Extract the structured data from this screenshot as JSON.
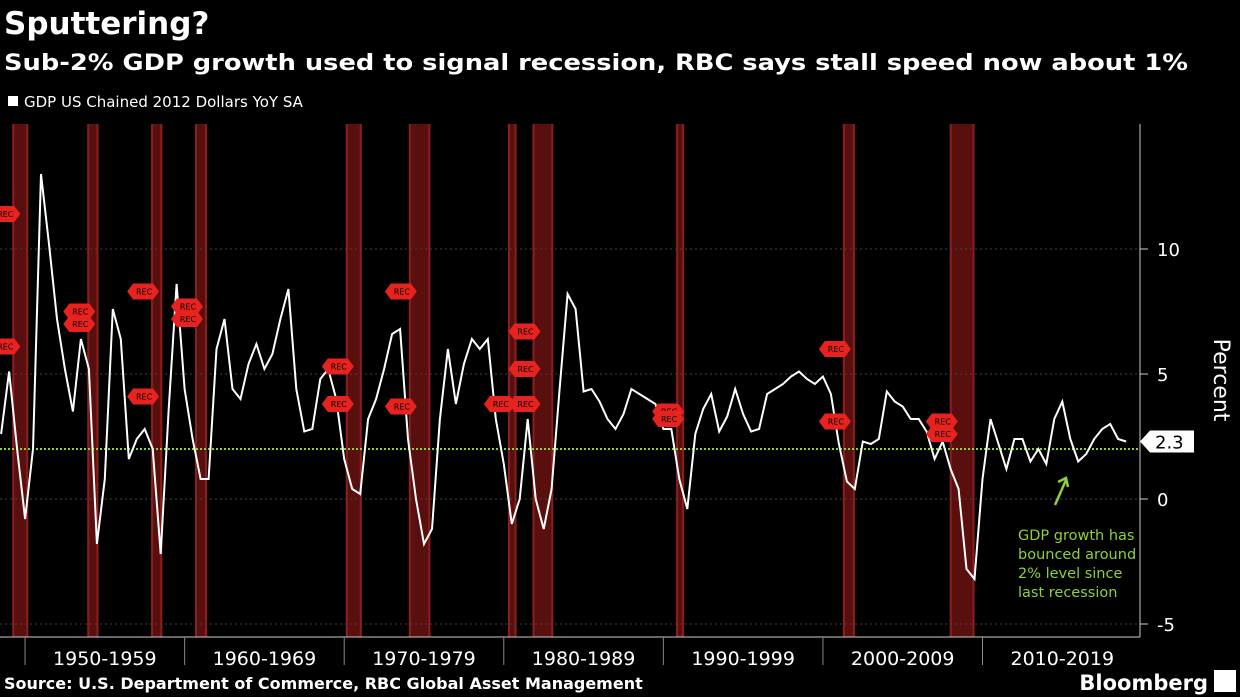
{
  "chart_data": {
    "type": "line",
    "title": "Sputtering?",
    "subtitle": "Sub-2% GDP growth used to signal recession, RBC says stall speed now about 1%",
    "y_label": "Percent",
    "source": "Source: U.S. Department of Commerce, RBC Global Asset Management",
    "brand": "Bloomberg",
    "annotation": [
      "GDP growth has",
      "bounced around",
      "2% level since",
      "last recession"
    ],
    "annotation_color": "#8fd13a",
    "reference_line": {
      "value": 2,
      "color": "#8fd13a"
    },
    "xlim": [
      1948.43,
      2019.87
    ],
    "ylim": [
      -5.52,
      15
    ],
    "yticks": [
      -5,
      0,
      5,
      10
    ],
    "xticks": [
      {
        "value": 1950,
        "label": "1950-1959"
      },
      {
        "value": 1960,
        "label": "1960-1969"
      },
      {
        "value": 1970,
        "label": "1970-1979"
      },
      {
        "value": 1980,
        "label": "1980-1989"
      },
      {
        "value": 1990,
        "label": "1990-1999"
      },
      {
        "value": 2000,
        "label": "2000-2009"
      },
      {
        "value": 2010,
        "label": "2010-2019"
      }
    ],
    "grid": true,
    "recession_color": "#5a0f0f",
    "recessions": [
      {
        "start": 1949.2,
        "end": 1950.2,
        "label": "REC",
        "flags": [
          11.4,
          6.1
        ]
      },
      {
        "start": 1953.9,
        "end": 1954.6,
        "label": "REC",
        "flags": [
          7.5,
          7.0
        ]
      },
      {
        "start": 1957.9,
        "end": 1958.6,
        "label": "REC",
        "flags": [
          8.3,
          4.1
        ]
      },
      {
        "start": 1960.65,
        "end": 1961.4,
        "label": "REC",
        "flags": [
          7.7,
          7.2
        ]
      },
      {
        "start": 1970.1,
        "end": 1971.1,
        "label": "REC",
        "flags": [
          5.3,
          3.8
        ]
      },
      {
        "start": 1974.05,
        "end": 1975.4,
        "label": "REC",
        "flags": [
          8.3,
          3.7
        ]
      },
      {
        "start": 1980.26,
        "end": 1980.8,
        "label": "REC",
        "flags": [
          3.8
        ]
      },
      {
        "start": 1981.8,
        "end": 1983.1,
        "label": "REC",
        "flags": [
          6.7,
          5.2,
          3.8
        ]
      },
      {
        "start": 1990.8,
        "end": 1991.3,
        "label": "REC",
        "flags": [
          3.5,
          3.2
        ]
      },
      {
        "start": 2001.25,
        "end": 2002.0,
        "label": "REC",
        "flags": [
          6.0,
          3.1
        ]
      },
      {
        "start": 2007.95,
        "end": 2009.5,
        "label": "REC",
        "flags": [
          3.1,
          2.6
        ]
      }
    ],
    "x": [
      1948.5,
      1949,
      1949.5,
      1950,
      1950.5,
      1951,
      1951.5,
      1952,
      1952.5,
      1953,
      1953.5,
      1954,
      1954.5,
      1955,
      1955.5,
      1956,
      1956.5,
      1957,
      1957.5,
      1958,
      1958.5,
      1959,
      1959.5,
      1960,
      1960.5,
      1961,
      1961.5,
      1962,
      1962.5,
      1963,
      1963.5,
      1964,
      1964.5,
      1965,
      1965.5,
      1966,
      1966.5,
      1967,
      1967.5,
      1968,
      1968.5,
      1969,
      1969.5,
      1970,
      1970.5,
      1971,
      1971.5,
      1972,
      1972.5,
      1973,
      1973.5,
      1974,
      1974.5,
      1975,
      1975.5,
      1976,
      1976.5,
      1977,
      1977.5,
      1978,
      1978.5,
      1979,
      1979.5,
      1980,
      1980.5,
      1981,
      1981.5,
      1982,
      1982.5,
      1983,
      1983.5,
      1984,
      1984.5,
      1985,
      1985.5,
      1986,
      1986.5,
      1987,
      1987.5,
      1988,
      1988.5,
      1989,
      1989.5,
      1990,
      1990.5,
      1991,
      1991.5,
      1992,
      1992.5,
      1993,
      1993.5,
      1994,
      1994.5,
      1995,
      1995.5,
      1996,
      1996.5,
      1997,
      1997.5,
      1998,
      1998.5,
      1999,
      1999.5,
      2000,
      2000.5,
      2001,
      2001.5,
      2002,
      2002.5,
      2003,
      2003.5,
      2004,
      2004.5,
      2005,
      2005.5,
      2006,
      2006.5,
      2007,
      2007.5,
      2008,
      2008.5,
      2009,
      2009.5,
      2010,
      2010.5,
      2011,
      2011.5,
      2012,
      2012.5,
      2013,
      2013.5,
      2014,
      2014.5,
      2015,
      2015.5,
      2016,
      2016.5,
      2017,
      2017.5,
      2018,
      2018.5,
      2019
    ],
    "series": [
      {
        "name": "GDP US Chained 2012 Dollars YoY SA",
        "color": "#ffffff",
        "values": [
          2.6,
          5.1,
          2.0,
          -0.8,
          2.0,
          13.0,
          10.2,
          7.2,
          5.2,
          3.5,
          6.4,
          5.2,
          -1.8,
          0.8,
          7.6,
          6.4,
          1.6,
          2.4,
          2.8,
          2.0,
          -2.2,
          3.6,
          8.6,
          4.4,
          2.4,
          0.8,
          0.8,
          6.0,
          7.2,
          4.4,
          4.0,
          5.4,
          6.2,
          5.2,
          5.8,
          7.2,
          8.4,
          4.4,
          2.7,
          2.8,
          4.8,
          5.2,
          4.0,
          1.6,
          0.4,
          0.2,
          3.2,
          4.0,
          5.2,
          6.6,
          6.8,
          2.4,
          0.0,
          -1.8,
          -1.2,
          3.2,
          6.0,
          3.8,
          5.4,
          6.4,
          6.0,
          6.4,
          3.2,
          1.4,
          -1.0,
          0.0,
          3.2,
          0.0,
          -1.2,
          0.4,
          4.4,
          8.2,
          7.6,
          4.3,
          4.4,
          3.9,
          3.2,
          2.8,
          3.4,
          4.4,
          4.2,
          4.0,
          3.8,
          2.8,
          2.8,
          0.8,
          -0.4,
          2.6,
          3.6,
          4.2,
          2.7,
          3.3,
          4.4,
          3.4,
          2.7,
          2.8,
          4.2,
          4.4,
          4.6,
          4.9,
          5.1,
          4.8,
          4.6,
          4.9,
          4.2,
          2.2,
          0.7,
          0.4,
          2.3,
          2.2,
          2.4,
          4.3,
          3.9,
          3.7,
          3.2,
          3.2,
          2.7,
          1.6,
          2.3,
          1.2,
          0.4,
          -2.8,
          -3.2,
          0.8,
          3.2,
          2.2,
          1.2,
          2.4,
          2.4,
          1.5,
          2.0,
          1.4,
          3.2,
          3.9,
          2.4,
          1.5,
          1.8,
          2.4,
          2.8,
          3.0,
          2.4,
          2.3
        ]
      }
    ]
  }
}
